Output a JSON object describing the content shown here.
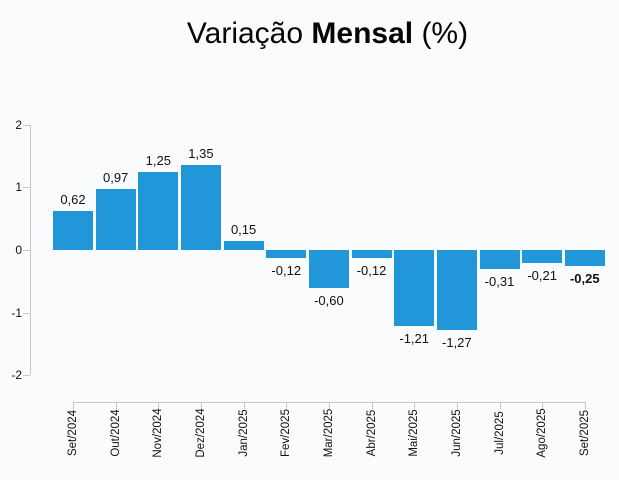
{
  "title": {
    "prefix": "Variação ",
    "bold": "Mensal",
    "suffix": " (%)"
  },
  "chart_data": {
    "type": "bar",
    "title": "Variação Mensal (%)",
    "categories": [
      "Set/2024",
      "Out/2024",
      "Nov/2024",
      "Dez/2024",
      "Jan/2025",
      "Fev/2025",
      "Mar/2025",
      "Abr/2025",
      "Mai/2025",
      "Jun/2025",
      "Jul/2025",
      "Ago/2025",
      "Set/2025"
    ],
    "values": [
      0.62,
      0.97,
      1.25,
      1.35,
      0.15,
      -0.12,
      -0.6,
      -0.12,
      -1.21,
      -1.27,
      -0.31,
      -0.21,
      -0.25
    ],
    "value_labels": [
      "0,62",
      "0,97",
      "1,25",
      "1,35",
      "0,15",
      "-0,12",
      "-0,60",
      "-0,12",
      "-1,21",
      "-1,27",
      "-0,31",
      "-0,21",
      "-0,25"
    ],
    "bold_label_index": 12,
    "xlabel": "",
    "ylabel": "",
    "yticks": [
      2,
      1,
      0,
      -1,
      -2
    ],
    "ylim": [
      -2,
      2
    ],
    "grid": false,
    "legend": false,
    "bar_color": "#2196d9",
    "axis_color": "#c8c8c8",
    "label_color": "#111111",
    "background": "#fafbfc"
  }
}
